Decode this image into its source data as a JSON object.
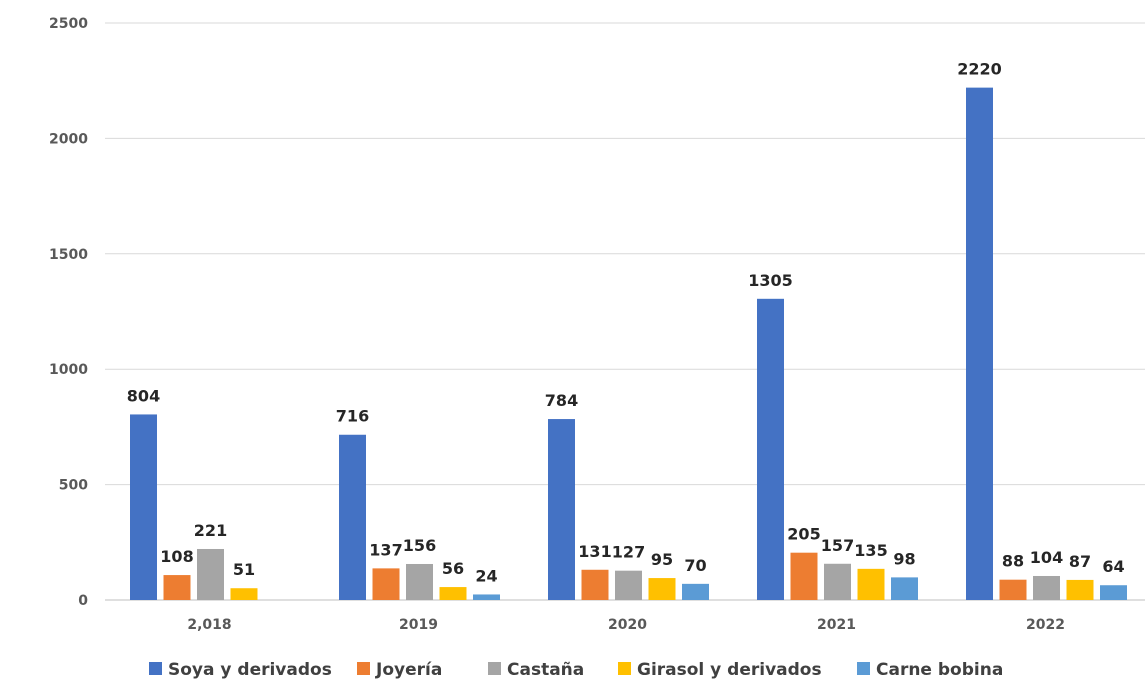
{
  "chart_data": {
    "type": "bar",
    "title": "",
    "xlabel": "",
    "ylabel": "",
    "ylim": [
      0,
      2500
    ],
    "yticks": [
      0,
      500,
      1000,
      1500,
      2000,
      2500
    ],
    "grid": true,
    "legend_position": "bottom",
    "categories": [
      "2,018",
      "2019",
      "2020",
      "2021",
      "2022"
    ],
    "series": [
      {
        "name": "Soya y derivados",
        "color": "#4472c4",
        "values": [
          804,
          716,
          784,
          1305,
          2220
        ]
      },
      {
        "name": "Joyería",
        "color": "#ed7d31",
        "values": [
          108,
          137,
          131,
          205,
          88
        ]
      },
      {
        "name": "Castaña",
        "color": "#a5a5a5",
        "values": [
          221,
          156,
          127,
          157,
          104
        ]
      },
      {
        "name": "Girasol y derivados",
        "color": "#ffc000",
        "values": [
          51,
          56,
          95,
          135,
          87
        ]
      },
      {
        "name": "Carne bobina",
        "color": "#5b9bd5",
        "values": [
          null,
          24,
          70,
          98,
          64
        ]
      }
    ]
  }
}
